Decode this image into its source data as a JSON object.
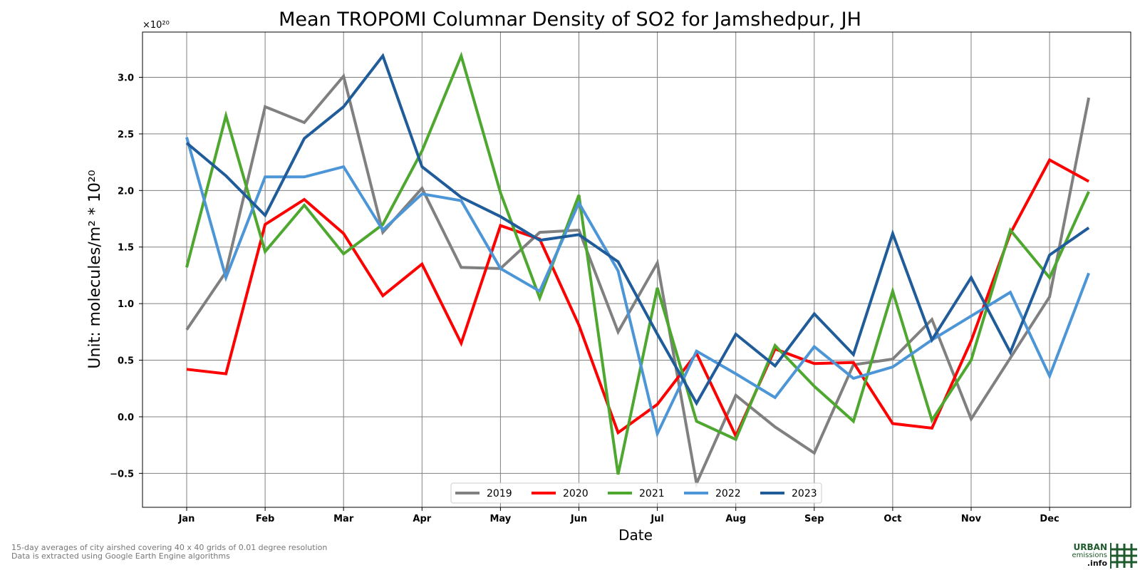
{
  "chart_data": {
    "type": "line",
    "title": "Mean TROPOMI Columnar Density of SO2 for Jamshedpur, JH",
    "xlabel": "Date",
    "ylabel": "Unit: molecules/m² * 10²⁰",
    "offset_text": "×10²⁰",
    "x_ticks": [
      "Jan",
      "Feb",
      "Mar",
      "Apr",
      "May",
      "Jun",
      "Jul",
      "Aug",
      "Sep",
      "Oct",
      "Nov",
      "Dec"
    ],
    "y_ticks": [
      "−0.5",
      "0.0",
      "0.5",
      "1.0",
      "1.5",
      "2.0",
      "2.5",
      "3.0"
    ],
    "y_tick_values": [
      -0.5,
      0,
      0.5,
      1,
      1.5,
      2,
      2.5,
      3
    ],
    "ylim": [
      -0.8,
      3.4
    ],
    "x_points": [
      "Jan 1",
      "Jan 16",
      "Feb 1",
      "Feb 16",
      "Mar 1",
      "Mar 16",
      "Apr 1",
      "Apr 16",
      "May 1",
      "May 16",
      "Jun 1",
      "Jun 16",
      "Jul 1",
      "Jul 16",
      "Aug 1",
      "Aug 16",
      "Sep 1",
      "Sep 16",
      "Oct 1",
      "Oct 16",
      "Nov 1",
      "Nov 16",
      "Dec 1",
      "Dec 16"
    ],
    "grid": true,
    "legend_position": "bottom-center",
    "series": [
      {
        "name": "2019",
        "color": "#808080",
        "values": [
          0.77,
          1.28,
          2.74,
          2.6,
          3.01,
          1.63,
          2.02,
          1.32,
          1.31,
          1.63,
          1.65,
          0.75,
          1.36,
          -0.59,
          0.19,
          -0.09,
          -0.32,
          0.46,
          0.51,
          0.86,
          -0.02,
          0.52,
          1.06,
          2.82
        ]
      },
      {
        "name": "2020",
        "color": "#ff0000",
        "values": [
          0.42,
          0.38,
          1.7,
          1.92,
          1.62,
          1.07,
          1.35,
          0.65,
          1.69,
          1.57,
          0.81,
          -0.14,
          0.11,
          0.56,
          -0.17,
          0.6,
          0.47,
          0.48,
          -0.06,
          -0.1,
          0.67,
          1.62,
          2.27,
          2.08
        ]
      },
      {
        "name": "2021",
        "color": "#4ea72e",
        "values": [
          1.32,
          2.66,
          1.46,
          1.87,
          1.44,
          1.7,
          2.35,
          3.19,
          1.98,
          1.05,
          1.96,
          -0.51,
          1.14,
          -0.04,
          -0.2,
          0.63,
          0.27,
          -0.04,
          1.11,
          -0.03,
          0.5,
          1.65,
          1.23,
          1.99
        ]
      },
      {
        "name": "2022",
        "color": "#4c96d7",
        "values": [
          2.47,
          1.23,
          2.12,
          2.12,
          2.21,
          1.65,
          1.97,
          1.91,
          1.31,
          1.11,
          1.89,
          1.29,
          -0.15,
          0.58,
          0.38,
          0.17,
          0.62,
          0.34,
          0.44,
          0.68,
          0.89,
          1.1,
          0.36,
          1.27
        ]
      },
      {
        "name": "2023",
        "color": "#1f5c99",
        "values": [
          2.42,
          2.13,
          1.78,
          2.46,
          2.74,
          3.19,
          2.21,
          1.94,
          1.77,
          1.56,
          1.61,
          1.37,
          0.73,
          0.12,
          0.73,
          0.45,
          0.91,
          0.55,
          1.62,
          0.68,
          1.23,
          0.57,
          1.43,
          1.67
        ]
      }
    ]
  },
  "footnote": {
    "line1": "15-day averages of city airshed covering 40 x 40 grids of 0.01 degree resolution",
    "line2": "Data is extracted using Google Earth Engine algorithms"
  },
  "logo": {
    "line1": "URBAN",
    "line2": "emissions",
    "line3": ".info",
    "color": "#1e5a2c"
  }
}
